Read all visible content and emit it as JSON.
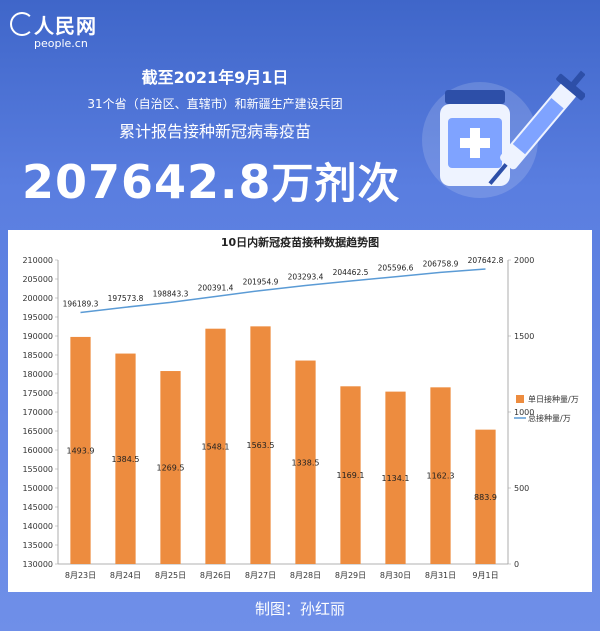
{
  "header": {
    "logo_mark": "人民网",
    "logo_site": "people.cn",
    "date_line": "截至2021年9月1日",
    "scope_line": "31个省（自治区、直辖市）和新疆生产建设兵团",
    "label_line": "累计报告接种新冠病毒疫苗",
    "total_value": "207642.8",
    "total_unit": "万剂次"
  },
  "credit": "制图：孙红丽",
  "colors": {
    "bar": "#ed8c3f",
    "line": "#5b9bd5",
    "bg": "#4a6fd6"
  },
  "chart_data": {
    "type": "bar",
    "title": "10日内新冠疫苗接种数据趋势图",
    "categories": [
      "8月23日",
      "8月24日",
      "8月25日",
      "8月26日",
      "8月27日",
      "8月28日",
      "8月29日",
      "8月30日",
      "8月31日",
      "9月1日"
    ],
    "series": [
      {
        "name": "单日接种量/万",
        "type": "bar",
        "axis": "right",
        "values": [
          1493.9,
          1384.5,
          1269.5,
          1548.1,
          1563.5,
          1338.5,
          1169.1,
          1134.1,
          1162.3,
          883.9
        ]
      },
      {
        "name": "总接种量/万",
        "type": "line",
        "axis": "left",
        "values": [
          196189.3,
          197573.8,
          198843.3,
          200391.4,
          201954.9,
          203293.4,
          204462.5,
          205596.6,
          206758.9,
          207642.8
        ]
      }
    ],
    "y_left": {
      "min": 130000,
      "max": 210000,
      "step": 5000
    },
    "y_right": {
      "min": 0,
      "max": 2000,
      "step": 500
    },
    "legend_position": "right"
  }
}
